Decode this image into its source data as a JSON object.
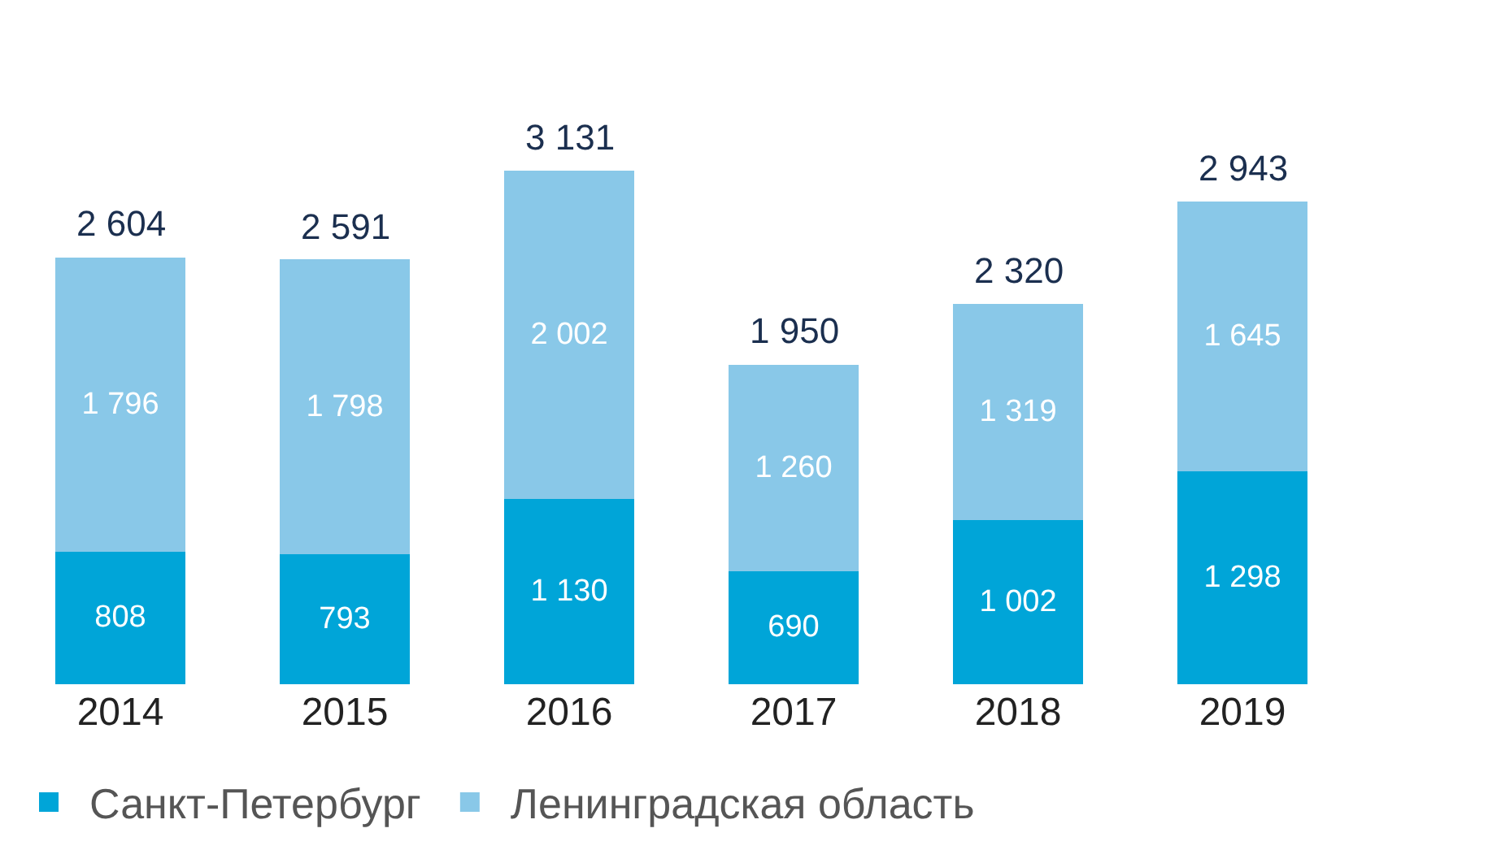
{
  "chart_data": {
    "type": "bar",
    "stacked": true,
    "categories": [
      "2014",
      "2015",
      "2016",
      "2017",
      "2018",
      "2019"
    ],
    "series": [
      {
        "name": "Санкт-Петербург",
        "color": "#00a5d8",
        "values": [
          808,
          793,
          1130,
          690,
          1002,
          1298
        ],
        "value_labels": [
          "808",
          "793",
          "1 130",
          "690",
          "1 002",
          "1 298"
        ]
      },
      {
        "name": "Ленинградская область",
        "color": "#89c8e8",
        "values": [
          1796,
          1798,
          2002,
          1260,
          1319,
          1645
        ],
        "value_labels": [
          "1 796",
          "1 798",
          "2 002",
          "1 260",
          "1 319",
          "1 645"
        ]
      }
    ],
    "totals": [
      "2 604",
      "2 591",
      "3 131",
      "1 950",
      "2 320",
      "2 943"
    ],
    "grid": false,
    "legend": "bottom",
    "tick_labels": "x"
  }
}
